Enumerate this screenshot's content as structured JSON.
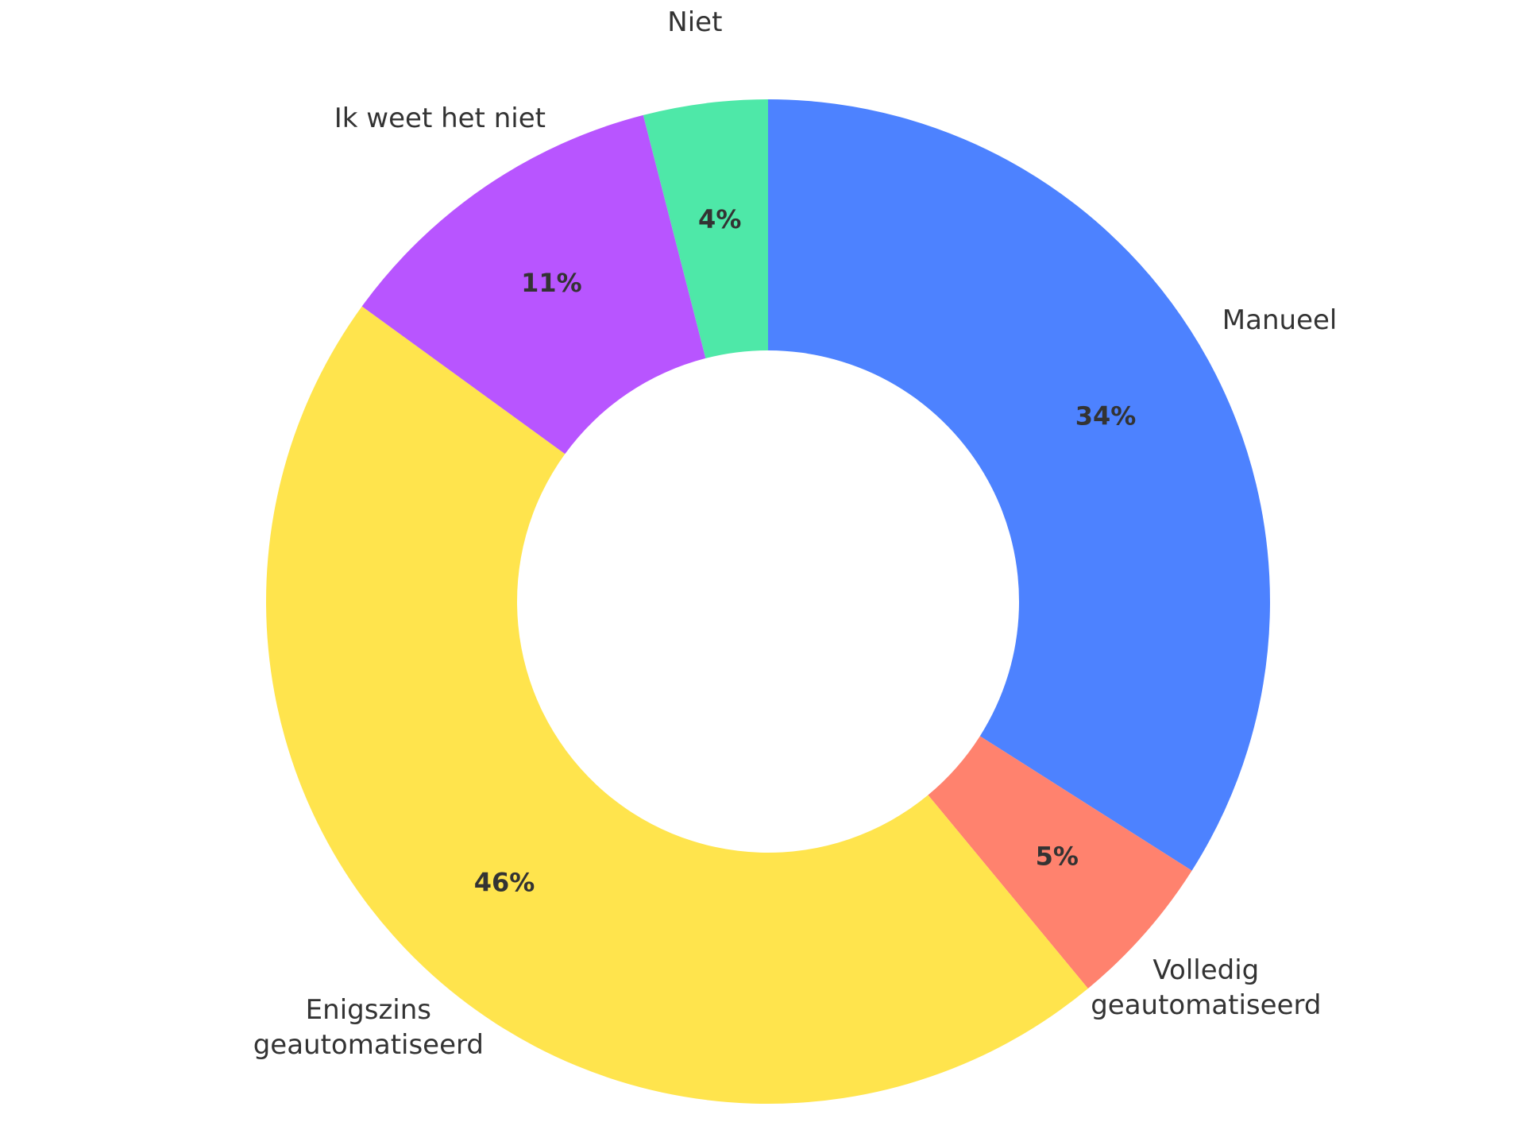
{
  "chart_data": {
    "type": "pie",
    "donut": true,
    "title": "",
    "legend": "none",
    "slices": [
      {
        "name": "Manueel",
        "lines": [
          "Manueel"
        ],
        "value": 34,
        "label": "34%",
        "color": "#4d82ff"
      },
      {
        "name": "Volledig geautomatiseerd",
        "lines": [
          "Volledig",
          "geautomatiseerd"
        ],
        "value": 5,
        "label": "5%",
        "color": "#ff826e"
      },
      {
        "name": "Enigszins geautomatiseerd",
        "lines": [
          "Enigszins",
          "geautomatiseerd"
        ],
        "value": 46,
        "label": "46%",
        "color": "#ffe44d"
      },
      {
        "name": "Ik weet het niet",
        "lines": [
          "Ik weet het niet"
        ],
        "value": 11,
        "label": "11%",
        "color": "#b855ff"
      },
      {
        "name": "Niet",
        "lines": [
          "Niet"
        ],
        "value": 4,
        "label": "4%",
        "color": "#4ee8a8"
      }
    ]
  }
}
